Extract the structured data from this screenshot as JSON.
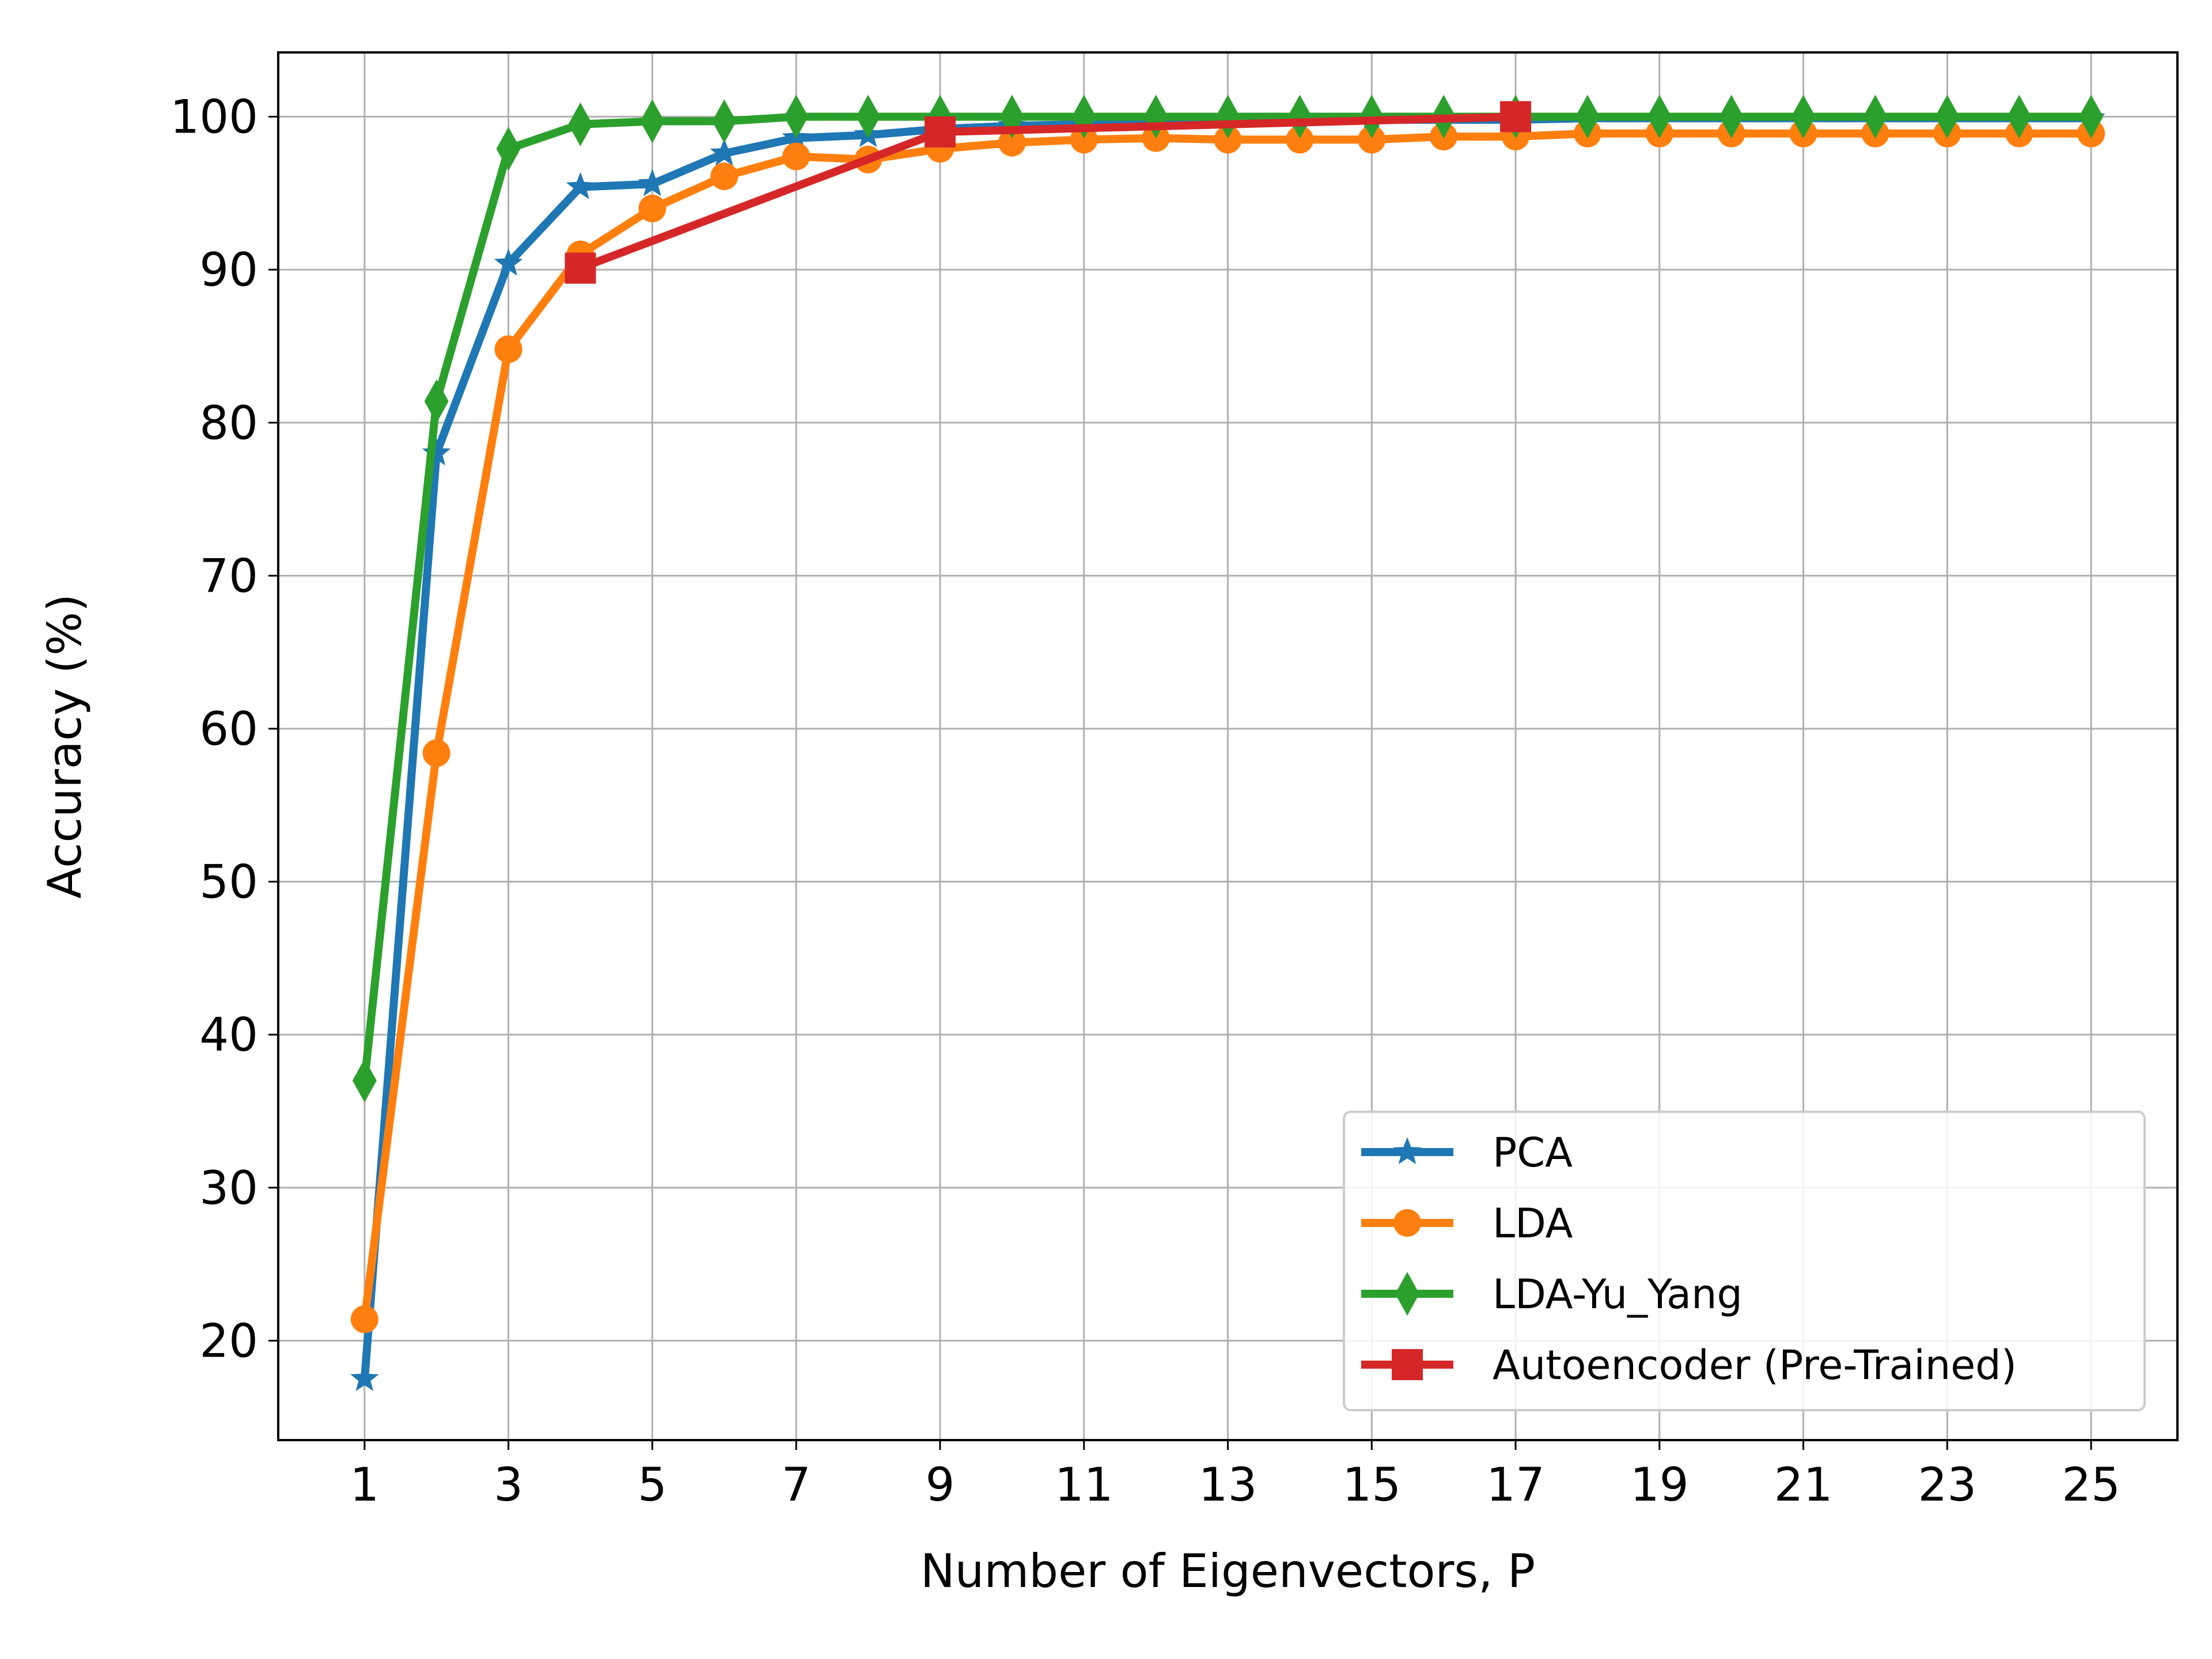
{
  "chart_data": {
    "type": "line",
    "xlabel": "Number of Eigenvectors, P",
    "ylabel": "Accuracy (%)",
    "xlim": [
      -0.2,
      26.2
    ],
    "ylim": [
      13.5,
      104.2
    ],
    "x_ticks": [
      1,
      3,
      5,
      7,
      9,
      11,
      13,
      15,
      17,
      19,
      21,
      23,
      25
    ],
    "y_ticks": [
      20,
      30,
      40,
      50,
      60,
      70,
      80,
      90,
      100
    ],
    "grid": true,
    "legend_position": "lower-right",
    "series": [
      {
        "name": "PCA",
        "color": "#1f77b4",
        "marker": "star",
        "x": [
          1,
          2,
          3,
          4,
          5,
          6,
          7,
          8,
          9,
          10,
          11,
          12,
          13,
          14,
          15,
          16,
          17,
          18,
          19,
          20,
          21,
          22,
          23,
          24,
          25
        ],
        "values": [
          17.5,
          78.0,
          90.4,
          95.4,
          95.6,
          97.6,
          98.6,
          98.8,
          99.2,
          99.4,
          99.5,
          99.6,
          99.6,
          99.7,
          99.8,
          99.8,
          99.8,
          99.9,
          99.9,
          99.9,
          99.9,
          99.9,
          99.9,
          99.9,
          99.9
        ]
      },
      {
        "name": "LDA",
        "color": "#ff7f0e",
        "marker": "circle",
        "x": [
          1,
          2,
          3,
          4,
          5,
          6,
          7,
          8,
          9,
          10,
          11,
          12,
          13,
          14,
          15,
          16,
          17,
          18,
          19,
          20,
          21,
          22,
          23,
          24,
          25
        ],
        "values": [
          21.4,
          58.4,
          84.8,
          91.0,
          94.0,
          96.1,
          97.4,
          97.2,
          97.9,
          98.3,
          98.5,
          98.6,
          98.5,
          98.5,
          98.5,
          98.7,
          98.7,
          98.9,
          98.9,
          98.9,
          98.9,
          98.9,
          98.9,
          98.9,
          98.9
        ]
      },
      {
        "name": "LDA-Yu_Yang",
        "color": "#2ca02c",
        "marker": "diamond",
        "x": [
          1,
          2,
          3,
          4,
          5,
          6,
          7,
          8,
          9,
          10,
          11,
          12,
          13,
          14,
          15,
          16,
          17,
          18,
          19,
          20,
          21,
          22,
          23,
          24,
          25
        ],
        "values": [
          37.0,
          81.4,
          97.9,
          99.5,
          99.7,
          99.7,
          100.0,
          100.0,
          100.0,
          100.0,
          100.0,
          100.0,
          100.0,
          100.0,
          100.0,
          100.0,
          100.0,
          100.0,
          100.0,
          100.0,
          100.0,
          100.0,
          100.0,
          100.0,
          100.0
        ]
      },
      {
        "name": "Autoencoder (Pre-Trained)",
        "color": "#d62728",
        "marker": "square",
        "x": [
          4,
          9,
          17
        ],
        "values": [
          90.1,
          99.0,
          100.0
        ]
      }
    ]
  }
}
